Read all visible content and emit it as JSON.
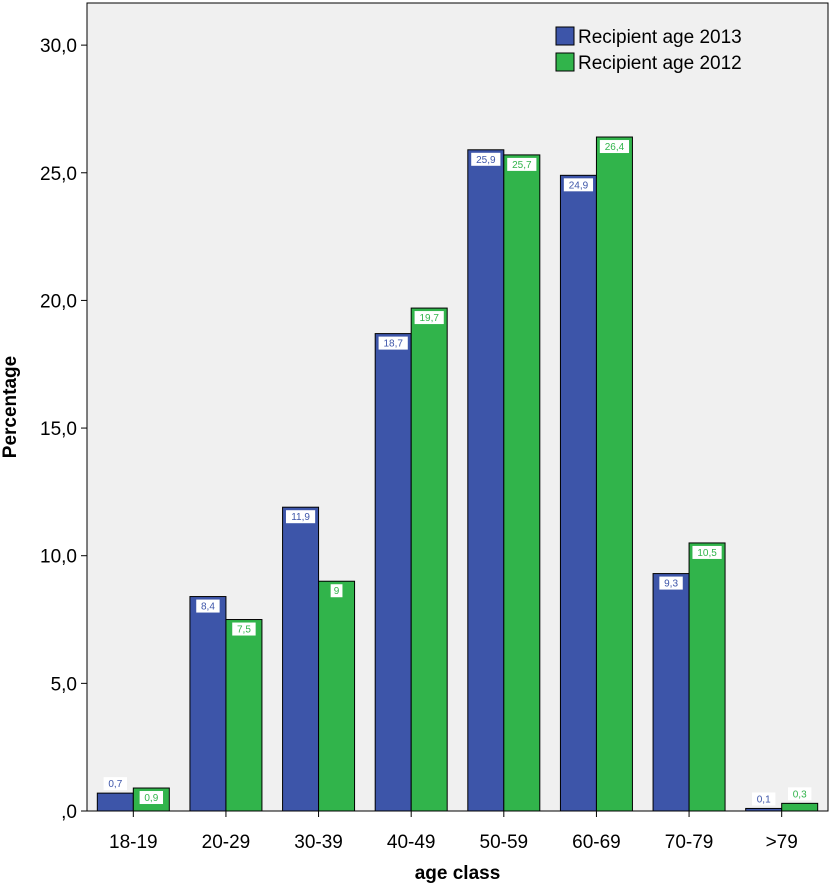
{
  "chart_data": {
    "type": "bar",
    "title": "",
    "xlabel": "age class",
    "ylabel": "Percentage",
    "categories": [
      "18-19",
      "20-29",
      "30-39",
      "40-49",
      "50-59",
      "60-69",
      "70-79",
      ">79"
    ],
    "series": [
      {
        "name": "Recipient age 2013",
        "color": "#3d55a9",
        "values": [
          0.7,
          8.4,
          11.9,
          18.7,
          25.9,
          24.9,
          9.3,
          0.1
        ],
        "value_labels": [
          "0,7",
          "8,4",
          "11,9",
          "18,7",
          "25,9",
          "24,9",
          "9,3",
          "0,1"
        ]
      },
      {
        "name": "Recipient age 2012",
        "color": "#31b44b",
        "values": [
          0.9,
          7.5,
          9.0,
          19.7,
          25.7,
          26.4,
          10.5,
          0.3
        ],
        "value_labels": [
          "0,9",
          "7,5",
          "9",
          "19,7",
          "25,7",
          "26,4",
          "10,5",
          "0,3"
        ]
      }
    ],
    "ylim": [
      0,
      30
    ],
    "yticks": [
      0,
      5,
      10,
      15,
      20,
      25,
      30
    ],
    "ytick_labels": [
      ",0",
      "5,0",
      "10,0",
      "15,0",
      "20,0",
      "25,0",
      "30,0"
    ],
    "grid": false,
    "legend_position": "top-right",
    "plot_background": "#f0f0f0"
  }
}
